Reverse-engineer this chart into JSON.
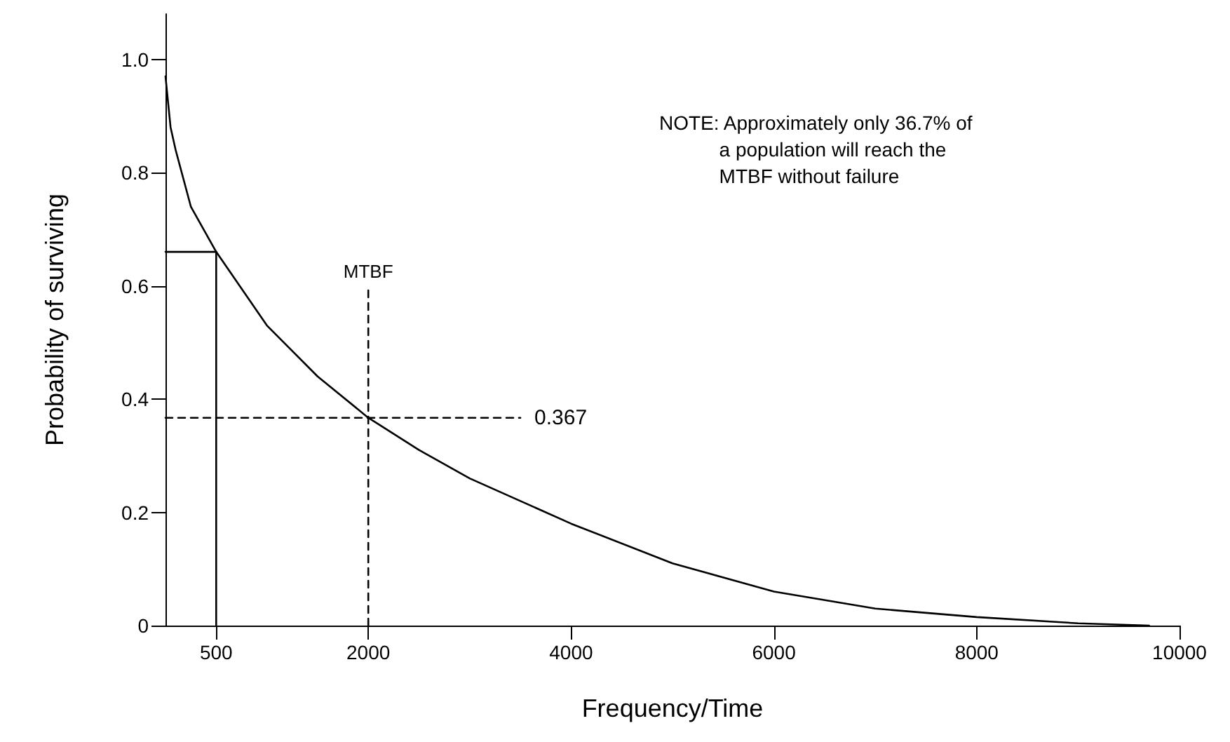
{
  "chart_data": {
    "type": "line",
    "xlabel": "Frequency/Time",
    "ylabel": "Probability of surviving",
    "xlim": [
      0,
      10000
    ],
    "xticks": [
      500,
      2000,
      4000,
      6000,
      8000,
      10000
    ],
    "ylim": [
      0,
      1.08
    ],
    "yticks": [
      0,
      0.2,
      0.4,
      0.6,
      0.8,
      {
        "value": 1,
        "label": "1.0"
      }
    ],
    "grid": false,
    "marker": "none",
    "line_style": "solid",
    "series": [
      {
        "color": "#000000",
        "x": [
          0,
          50,
          100,
          250,
          500,
          1000,
          1500,
          2000,
          2500,
          3000,
          3500,
          4000,
          5000,
          6000,
          7000,
          8000,
          9000,
          9700
        ],
        "values": [
          0.97,
          0.88,
          0.84,
          0.74,
          0.66,
          0.53,
          0.44,
          0.367,
          0.31,
          0.26,
          0.22,
          0.18,
          0.11,
          0.06,
          0.03,
          0.015,
          0.004,
          0
        ]
      },
      {
        "color": "#000000",
        "x": [
          0,
          500,
          500
        ],
        "values": [
          0.66,
          0.66,
          0
        ]
      },
      {
        "color": "#000000",
        "line_style": "dashed",
        "x": [
          2000,
          2000
        ],
        "values": [
          0,
          0.6
        ]
      },
      {
        "color": "#000000",
        "line_style": "dashed",
        "x": [
          0,
          3500
        ],
        "values": [
          0.367,
          0.367
        ]
      }
    ],
    "annotations": [
      {
        "text": "MTBF",
        "x": 2000,
        "y": 0.6
      },
      {
        "text": "0.367",
        "x": 3500,
        "y": 0.367
      },
      "NOTE: Approximately only 36.7% of\n           a population will reach the\n           MTBF without failure"
    ]
  }
}
